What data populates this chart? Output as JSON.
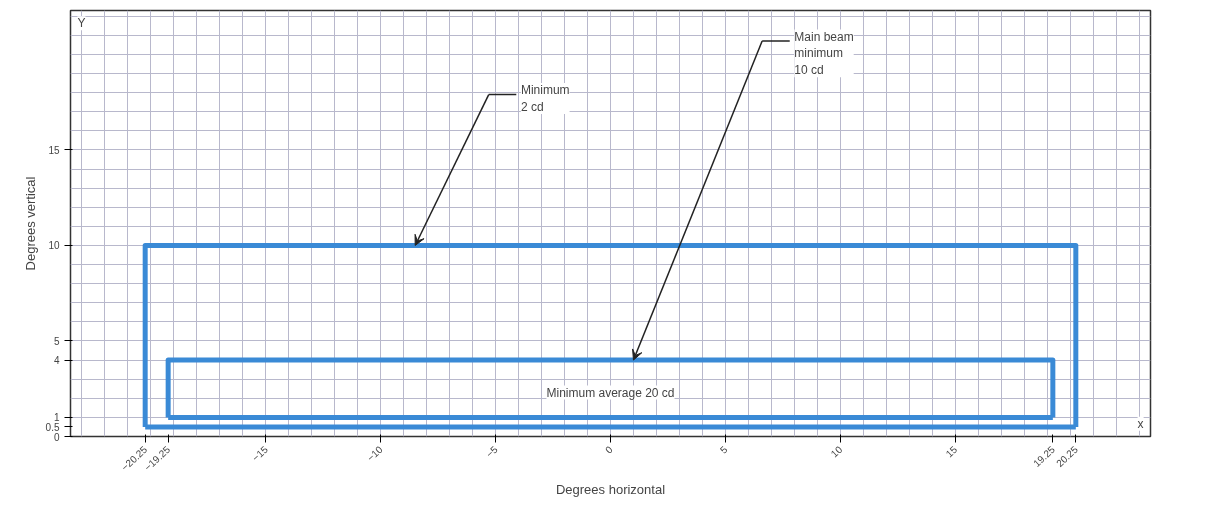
{
  "chart_data": {
    "type": "line",
    "xlabel": "Degrees horizontal",
    "ylabel": "Degrees vertical",
    "series": [
      {
        "color": "#3a8ad6",
        "x": [
          -20.25,
          -20.25,
          20.25,
          20.25
        ],
        "values": [
          0.5,
          10,
          10,
          0.5
        ]
      },
      {
        "color": "#3a8ad6",
        "x": [
          -20.25,
          20.25
        ],
        "values": [
          0.5,
          0.5
        ]
      },
      {
        "color": "#3a8ad6",
        "x": [
          -19.25,
          -19.25,
          19.25,
          19.25
        ],
        "values": [
          1,
          4,
          4,
          1
        ]
      },
      {
        "color": "#3a8ad6",
        "x": [
          -19.25,
          19.25
        ],
        "values": [
          1,
          1
        ]
      }
    ],
    "xlim": [
      -23.5,
      23.5
    ],
    "ylim": [
      0,
      22.3
    ],
    "xticks": [
      -20.25,
      -19.25,
      -15,
      -10,
      -5,
      0,
      5,
      10,
      15,
      19.25,
      20.25
    ],
    "yticks": [
      0,
      0.5,
      1,
      4,
      5,
      10,
      15
    ],
    "grid": true,
    "marker": "none",
    "line_style": "solid",
    "annotations": [
      "Minimum\n2 cd",
      "Main beam\nminimum\n10 cd",
      "Minimum average 20 cd",
      "Y",
      "x"
    ]
  }
}
